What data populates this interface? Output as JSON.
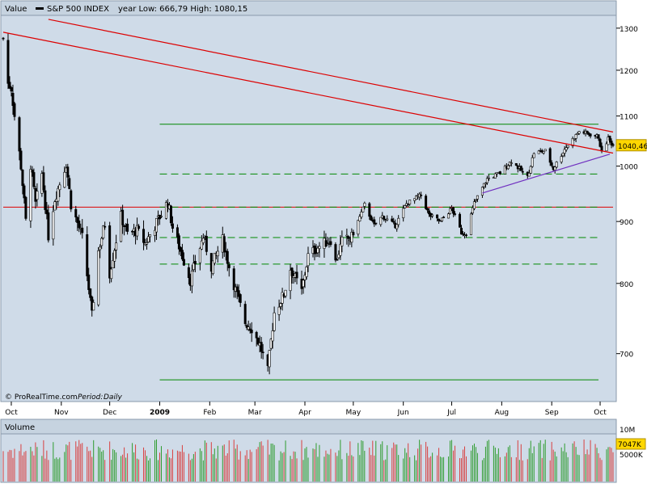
{
  "header": {
    "value_label": "Value",
    "series_name": "S&P 500 INDEX",
    "range_text": "year Low: 666,79 High: 1080,15"
  },
  "footer": {
    "credit": "© ProRealTime.com",
    "period_label": "Period:",
    "period_value": "Daily"
  },
  "price_box": {
    "value": "1040,46"
  },
  "volume_panel": {
    "title": "Volume",
    "tick_labels": [
      "10M",
      "5000K"
    ],
    "current_value": "7047K"
  },
  "colors": {
    "plot_bg": "#cfdbe8",
    "up_volume": "#2e9c2e",
    "down_volume": "#d84040",
    "trendline": "#dd0000",
    "support_line": "#008800",
    "uptrend_line": "#7030c0",
    "price_box": "#ffd700",
    "header_bg": "#c6d3e0"
  },
  "chart_data": {
    "type": "candlestick",
    "title": "S&P 500 INDEX",
    "period": "Daily",
    "y_scale": "log",
    "ylim": [
      640,
      1330
    ],
    "y_ticks": [
      700,
      800,
      900,
      1000,
      1100,
      1200,
      1300
    ],
    "x_range": [
      "2008-09-26",
      "2009-10-09"
    ],
    "x_ticks": [
      {
        "date": "2008-10-01",
        "label": "Oct"
      },
      {
        "date": "2008-11-01",
        "label": "Nov"
      },
      {
        "date": "2008-12-01",
        "label": "Dec"
      },
      {
        "date": "2009-01-01",
        "label": "2009"
      },
      {
        "date": "2009-02-01",
        "label": "Feb"
      },
      {
        "date": "2009-03-01",
        "label": "Mar"
      },
      {
        "date": "2009-04-01",
        "label": "Apr"
      },
      {
        "date": "2009-05-01",
        "label": "May"
      },
      {
        "date": "2009-06-01",
        "label": "Jun"
      },
      {
        "date": "2009-07-01",
        "label": "Jul"
      },
      {
        "date": "2009-08-01",
        "label": "Aug"
      },
      {
        "date": "2009-09-01",
        "label": "Sep"
      },
      {
        "date": "2009-10-01",
        "label": "Oct"
      }
    ],
    "close_anchors": [
      [
        "2008-09-26",
        1275
      ],
      [
        "2008-09-29",
        1170
      ],
      [
        "2008-10-01",
        1160
      ],
      [
        "2008-10-03",
        1100
      ],
      [
        "2008-10-07",
        1000
      ],
      [
        "2008-10-10",
        900
      ],
      [
        "2008-10-13",
        1003
      ],
      [
        "2008-10-16",
        930
      ],
      [
        "2008-10-20",
        985
      ],
      [
        "2008-10-24",
        876
      ],
      [
        "2008-10-28",
        940
      ],
      [
        "2008-11-04",
        1005
      ],
      [
        "2008-11-07",
        930
      ],
      [
        "2008-11-14",
        873
      ],
      [
        "2008-11-20",
        752
      ],
      [
        "2008-11-24",
        851
      ],
      [
        "2008-11-28",
        896
      ],
      [
        "2008-12-01",
        816
      ],
      [
        "2008-12-08",
        909
      ],
      [
        "2008-12-12",
        879
      ],
      [
        "2008-12-18",
        885
      ],
      [
        "2008-12-23",
        863
      ],
      [
        "2008-12-31",
        903
      ],
      [
        "2009-01-06",
        934
      ],
      [
        "2009-01-09",
        890
      ],
      [
        "2009-01-15",
        843
      ],
      [
        "2009-01-20",
        805
      ],
      [
        "2009-01-23",
        832
      ],
      [
        "2009-01-28",
        874
      ],
      [
        "2009-02-02",
        826
      ],
      [
        "2009-02-09",
        869
      ],
      [
        "2009-02-13",
        826
      ],
      [
        "2009-02-17",
        790
      ],
      [
        "2009-02-23",
        743
      ],
      [
        "2009-02-27",
        735
      ],
      [
        "2009-03-04",
        712
      ],
      [
        "2009-03-09",
        677
      ],
      [
        "2009-03-13",
        757
      ],
      [
        "2009-03-19",
        784
      ],
      [
        "2009-03-23",
        823
      ],
      [
        "2009-03-30",
        788
      ],
      [
        "2009-04-03",
        843
      ],
      [
        "2009-04-09",
        857
      ],
      [
        "2009-04-17",
        870
      ],
      [
        "2009-04-20",
        833
      ],
      [
        "2009-04-24",
        866
      ],
      [
        "2009-04-30",
        873
      ],
      [
        "2009-05-08",
        929
      ],
      [
        "2009-05-14",
        893
      ],
      [
        "2009-05-19",
        909
      ],
      [
        "2009-05-27",
        893
      ],
      [
        "2009-06-03",
        931
      ],
      [
        "2009-06-12",
        946
      ],
      [
        "2009-06-17",
        911
      ],
      [
        "2009-06-24",
        900
      ],
      [
        "2009-07-01",
        923
      ],
      [
        "2009-07-07",
        881
      ],
      [
        "2009-07-10",
        880
      ],
      [
        "2009-07-15",
        932
      ],
      [
        "2009-07-23",
        976
      ],
      [
        "2009-07-31",
        987
      ],
      [
        "2009-08-07",
        1010
      ],
      [
        "2009-08-17",
        979
      ],
      [
        "2009-08-21",
        1026
      ],
      [
        "2009-08-28",
        1029
      ],
      [
        "2009-09-02",
        995
      ],
      [
        "2009-09-09",
        1033
      ],
      [
        "2009-09-18",
        1068
      ],
      [
        "2009-09-23",
        1064
      ],
      [
        "2009-09-30",
        1057
      ],
      [
        "2009-10-02",
        1025
      ],
      [
        "2009-10-06",
        1054
      ],
      [
        "2009-10-09",
        1040
      ]
    ],
    "horizontal_levels": [
      {
        "value": 925,
        "style": "solid",
        "color": "red",
        "from": "2008-09-26",
        "to": "2009-10-09"
      },
      {
        "value": 1083,
        "style": "solid",
        "color": "green",
        "from": "2009-01-01",
        "to": "2009-09-30"
      },
      {
        "value": 985,
        "style": "dashed",
        "color": "green",
        "from": "2009-01-01",
        "to": "2009-09-30"
      },
      {
        "value": 925,
        "style": "dashed",
        "color": "green",
        "from": "2009-01-01",
        "to": "2009-09-30"
      },
      {
        "value": 873,
        "style": "dashed",
        "color": "green",
        "from": "2009-01-01",
        "to": "2009-09-30"
      },
      {
        "value": 830,
        "style": "dashed",
        "color": "green",
        "from": "2009-01-01",
        "to": "2009-09-30"
      },
      {
        "value": 666,
        "style": "solid",
        "color": "green",
        "from": "2009-01-01",
        "to": "2009-09-30"
      }
    ],
    "trendlines": [
      {
        "color": "red",
        "from": [
          "2008-09-26",
          1290
        ],
        "to": [
          "2009-10-09",
          1025
        ]
      },
      {
        "color": "red",
        "from": [
          "2008-10-24",
          1322
        ],
        "to": [
          "2009-10-09",
          1067
        ]
      },
      {
        "color": "purple",
        "from": [
          "2009-07-20",
          950
        ],
        "to": [
          "2009-10-07",
          1023
        ]
      }
    ],
    "last_close": 1040.46,
    "year_low": 666.79,
    "year_high": 1080.15
  }
}
